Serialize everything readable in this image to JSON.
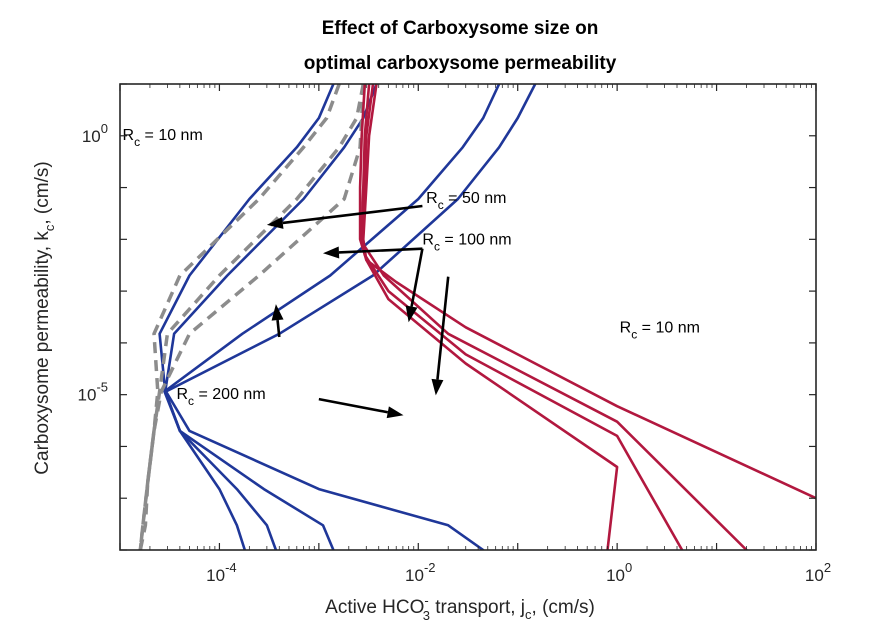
{
  "chart_data": {
    "type": "line",
    "title": [
      "Effect of Carboxysome size on",
      "optimal carboxysome permeability"
    ],
    "xlabel": {
      "main": "Active HCO",
      "sub": "3",
      "sup": "-",
      "rest": " transport, j",
      "sub2": "c",
      "tail": ", (cm/s)"
    },
    "ylabel": {
      "main": "Carboxysome permeability, k",
      "sub": "c",
      "tail": ", (cm/s)"
    },
    "xscale": "log",
    "yscale": "log",
    "xlim": [
      1e-05,
      100
    ],
    "ylim": [
      1e-08,
      10
    ],
    "xticks": [
      {
        "value": 0.0001,
        "base": "10",
        "exp": "-4"
      },
      {
        "value": 0.01,
        "base": "10",
        "exp": "-2"
      },
      {
        "value": 1,
        "base": "10",
        "exp": "0"
      },
      {
        "value": 100,
        "base": "10",
        "exp": "2"
      }
    ],
    "yticks": [
      {
        "value": 1,
        "base": "10",
        "exp": "0"
      },
      {
        "value": 1e-05,
        "base": "10",
        "exp": "-5"
      }
    ],
    "colors": {
      "blue": "#1f3799",
      "red": "#b2183f",
      "gray": "#8c8c8c",
      "axis": "#262626",
      "arrow": "#000000"
    },
    "series": [
      {
        "group": "blue",
        "style": "solid",
        "points": [
          [
            0.0014,
            10
          ],
          [
            0.001,
            2.2
          ],
          [
            0.0006,
            0.6
          ],
          [
            0.0002,
            0.06
          ],
          [
            5e-05,
            0.002
          ],
          [
            2.5e-05,
            0.00015
          ],
          [
            2.85e-05,
            1.15e-05
          ],
          [
            4e-05,
            2e-06
          ],
          [
            0.0001,
            1.5e-07
          ],
          [
            0.00015,
            3e-08
          ],
          [
            0.00018,
            1e-08
          ]
        ]
      },
      {
        "group": "blue",
        "style": "solid",
        "points": [
          [
            0.0038,
            10
          ],
          [
            0.0028,
            2.2
          ],
          [
            0.0018,
            0.6
          ],
          [
            0.0007,
            0.06
          ],
          [
            0.00012,
            0.002
          ],
          [
            3.5e-05,
            0.00015
          ],
          [
            2.85e-05,
            1.15e-05
          ],
          [
            4e-05,
            2e-06
          ],
          [
            0.00015,
            1.5e-07
          ],
          [
            0.0003,
            3e-08
          ],
          [
            0.00037,
            1e-08
          ]
        ]
      },
      {
        "group": "blue",
        "style": "solid",
        "points": [
          [
            0.065,
            10
          ],
          [
            0.045,
            2.2
          ],
          [
            0.028,
            0.6
          ],
          [
            0.01,
            0.06
          ],
          [
            0.0013,
            0.002
          ],
          [
            0.00017,
            0.00015
          ],
          [
            2.8e-05,
            1.15e-05
          ],
          [
            4e-05,
            2e-06
          ],
          [
            0.00028,
            1.5e-07
          ],
          [
            0.0011,
            3e-08
          ],
          [
            0.0014,
            1e-08
          ]
        ]
      },
      {
        "group": "blue",
        "style": "solid",
        "points": [
          [
            0.15,
            10
          ],
          [
            0.1,
            2.2
          ],
          [
            0.065,
            0.6
          ],
          [
            0.025,
            0.06
          ],
          [
            0.0035,
            0.002
          ],
          [
            0.0004,
            0.00015
          ],
          [
            2.9e-05,
            1.15e-05
          ],
          [
            5e-05,
            2e-06
          ],
          [
            0.001,
            1.5e-07
          ],
          [
            0.02,
            3e-08
          ],
          [
            0.045,
            1e-08
          ]
        ]
      },
      {
        "group": "gray",
        "style": "dashed",
        "points": [
          [
            0.0016,
            10
          ],
          [
            0.0012,
            2.2
          ],
          [
            0.0007,
            0.6
          ],
          [
            0.00025,
            0.06
          ],
          [
            4e-05,
            0.002
          ],
          [
            2.2e-05,
            0.00015
          ],
          [
            2.4e-05,
            1.15e-05
          ],
          [
            2.2e-05,
            2e-06
          ],
          [
            1.9e-05,
            2e-07
          ],
          [
            1.8e-05,
            3e-08
          ],
          [
            1.6e-05,
            1e-08
          ]
        ]
      },
      {
        "group": "gray",
        "style": "dashed",
        "points": [
          [
            0.0028,
            10
          ],
          [
            0.0024,
            2.2
          ],
          [
            0.0016,
            0.6
          ],
          [
            0.0006,
            0.06
          ],
          [
            0.0001,
            0.002
          ],
          [
            3e-05,
            0.00015
          ],
          [
            2.5e-05,
            1.15e-05
          ],
          [
            2.2e-05,
            2e-06
          ],
          [
            1.9e-05,
            2e-07
          ],
          [
            1.7e-05,
            3e-08
          ],
          [
            1.6e-05,
            1e-08
          ]
        ]
      },
      {
        "group": "gray",
        "style": "dashed",
        "points": [
          [
            0.0028,
            10
          ],
          [
            0.0027,
            2.2
          ],
          [
            0.0026,
            0.6
          ],
          [
            0.0018,
            0.06
          ],
          [
            0.00025,
            0.002
          ],
          [
            5e-05,
            0.00015
          ],
          [
            2.6e-05,
            1.15e-05
          ],
          [
            2.2e-05,
            2e-06
          ],
          [
            1.9e-05,
            2e-07
          ],
          [
            1.7e-05,
            3e-08
          ],
          [
            1.6e-05,
            1e-08
          ]
        ]
      },
      {
        "group": "red",
        "style": "solid",
        "points": [
          [
            0.0029,
            10
          ],
          [
            0.0027,
            1
          ],
          [
            0.0026,
            0.1
          ],
          [
            0.0026,
            0.01
          ],
          [
            0.003,
            0.004
          ],
          [
            0.006,
            0.0015
          ],
          [
            0.03,
            0.0002
          ],
          [
            1,
            6e-06
          ],
          [
            100,
            1e-07
          ]
        ]
      },
      {
        "group": "red",
        "style": "solid",
        "points": [
          [
            0.0032,
            10
          ],
          [
            0.0029,
            1
          ],
          [
            0.0028,
            0.1
          ],
          [
            0.0027,
            0.012
          ],
          [
            0.0028,
            0.008
          ],
          [
            0.0045,
            0.002
          ],
          [
            0.02,
            0.00015
          ],
          [
            1,
            3e-06
          ],
          [
            20,
            1e-08
          ]
        ]
      },
      {
        "group": "red",
        "style": "solid",
        "points": [
          [
            0.0035,
            10
          ],
          [
            0.003,
            1
          ],
          [
            0.0029,
            0.1
          ],
          [
            0.0027,
            0.01
          ],
          [
            0.0029,
            0.005
          ],
          [
            0.005,
            0.001
          ],
          [
            0.03,
            6e-05
          ],
          [
            1,
            1.6e-06
          ],
          [
            4.5,
            1e-08
          ]
        ]
      },
      {
        "group": "red",
        "style": "solid",
        "points": [
          [
            0.0038,
            10
          ],
          [
            0.0032,
            1
          ],
          [
            0.003,
            0.1
          ],
          [
            0.0028,
            0.01
          ],
          [
            0.003,
            0.004
          ],
          [
            0.005,
            0.0007
          ],
          [
            0.03,
            4e-05
          ],
          [
            1,
            4e-07
          ],
          [
            0.8,
            1e-08
          ]
        ]
      }
    ],
    "annotations": [
      {
        "id": "rc10-blue",
        "pre": "R",
        "sub": "c",
        "post": " = 10 nm",
        "at": [
          1.06e-05,
          0.83
        ]
      },
      {
        "id": "rc50",
        "pre": "R",
        "sub": "c",
        "post": " = 50 nm",
        "at": [
          0.012,
          0.05
        ]
      },
      {
        "id": "rc100",
        "pre": "R",
        "sub": "c",
        "post": " = 100 nm",
        "at": [
          0.011,
          0.008
        ]
      },
      {
        "id": "rc200",
        "pre": "R",
        "sub": "c",
        "post": " = 200 nm",
        "at": [
          3.7e-05,
          8.2e-06
        ]
      },
      {
        "id": "rc10-red",
        "pre": "R",
        "sub": "c",
        "post": " = 10 nm",
        "at": [
          1.06,
          0.00016
        ]
      }
    ],
    "arrows": [
      {
        "from": [
          0.011,
          0.044
        ],
        "to": [
          0.0003,
          0.019
        ]
      },
      {
        "from": [
          0.011,
          0.0066
        ],
        "to": [
          0.0011,
          0.0054
        ]
      },
      {
        "from": [
          0.011,
          0.0066
        ],
        "to": [
          0.008,
          0.00025
        ]
      },
      {
        "from": [
          0.02,
          0.0019
        ],
        "to": [
          0.015,
          9.7e-06
        ]
      },
      {
        "from": [
          0.0004,
          0.00013
        ],
        "to": [
          0.00037,
          0.00056
        ]
      },
      {
        "from": [
          0.001,
          8.2e-06
        ],
        "to": [
          0.0071,
          4e-06
        ]
      }
    ]
  }
}
